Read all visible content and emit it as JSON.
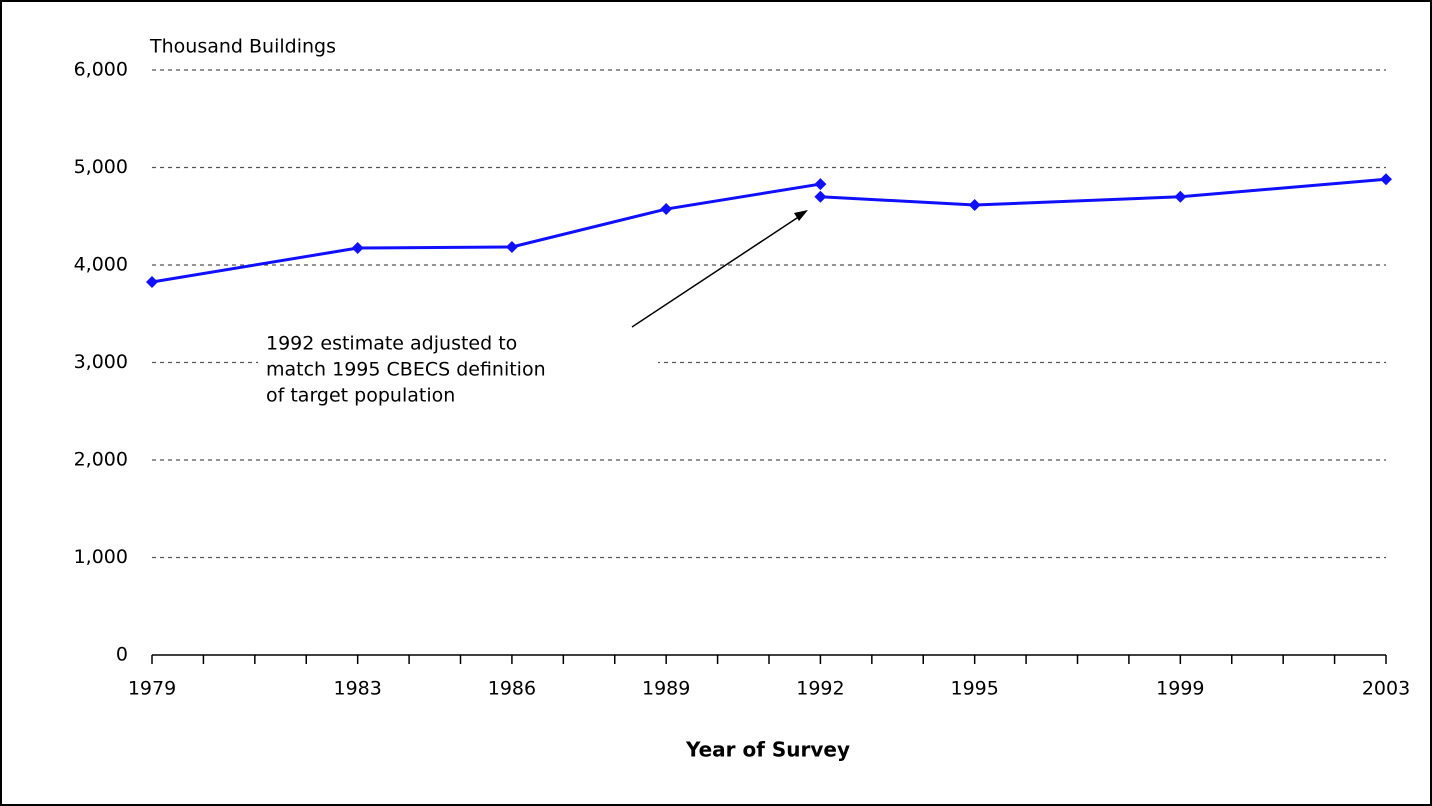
{
  "chart_data": {
    "type": "line",
    "y_axis_label": "Thousand Buildings",
    "x_axis_label": "Year of Survey",
    "annotation": [
      "1992 estimate adjusted to",
      "match 1995 CBECS definition",
      "of target population"
    ],
    "series": [
      {
        "color": "#1010ff",
        "x": [
          1979,
          1983,
          1986,
          1989,
          1992
        ],
        "values": [
          3826,
          4174,
          4185,
          4574,
          4830
        ]
      },
      {
        "color": "#1010ff",
        "x": [
          1992,
          1995,
          1999,
          2003
        ],
        "values": [
          4700,
          4615,
          4700,
          4880
        ]
      }
    ],
    "xlim": [
      1979,
      2003
    ],
    "xticks": [
      1979,
      1983,
      1986,
      1989,
      1992,
      1995,
      1999,
      2003
    ],
    "x_minor_ticks": [
      1980,
      1981,
      1982,
      1984,
      1985,
      1987,
      1988,
      1990,
      1991,
      1993,
      1994,
      1996,
      1997,
      1998,
      2000,
      2001,
      2002
    ],
    "ylim": [
      0,
      6000
    ],
    "yticks": [
      0,
      {
        "value": 1000,
        "label": "1,000"
      },
      {
        "value": 2000,
        "label": "2,000"
      },
      {
        "value": 3000,
        "label": "3,000"
      },
      {
        "value": 4000,
        "label": "4,000"
      },
      {
        "value": 5000,
        "label": "5,000"
      },
      {
        "value": 6000,
        "label": "6,000"
      }
    ],
    "grid": true
  }
}
